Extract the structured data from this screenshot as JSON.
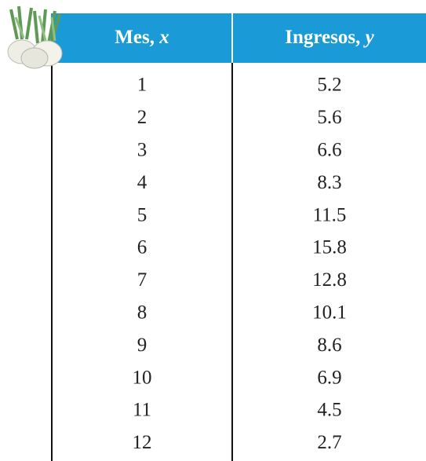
{
  "table": {
    "header": [
      [
        "Mes, ",
        "x"
      ],
      [
        "Ingresos, ",
        "y"
      ]
    ],
    "rows": [
      [
        1,
        5.2
      ],
      [
        2,
        5.6
      ],
      [
        3,
        6.6
      ],
      [
        4,
        8.3
      ],
      [
        5,
        11.5
      ],
      [
        6,
        15.8
      ],
      [
        7,
        12.8
      ],
      [
        8,
        10.1
      ],
      [
        9,
        8.6
      ],
      [
        10,
        6.9
      ],
      [
        11,
        4.5
      ],
      [
        12,
        2.7
      ]
    ]
  }
}
